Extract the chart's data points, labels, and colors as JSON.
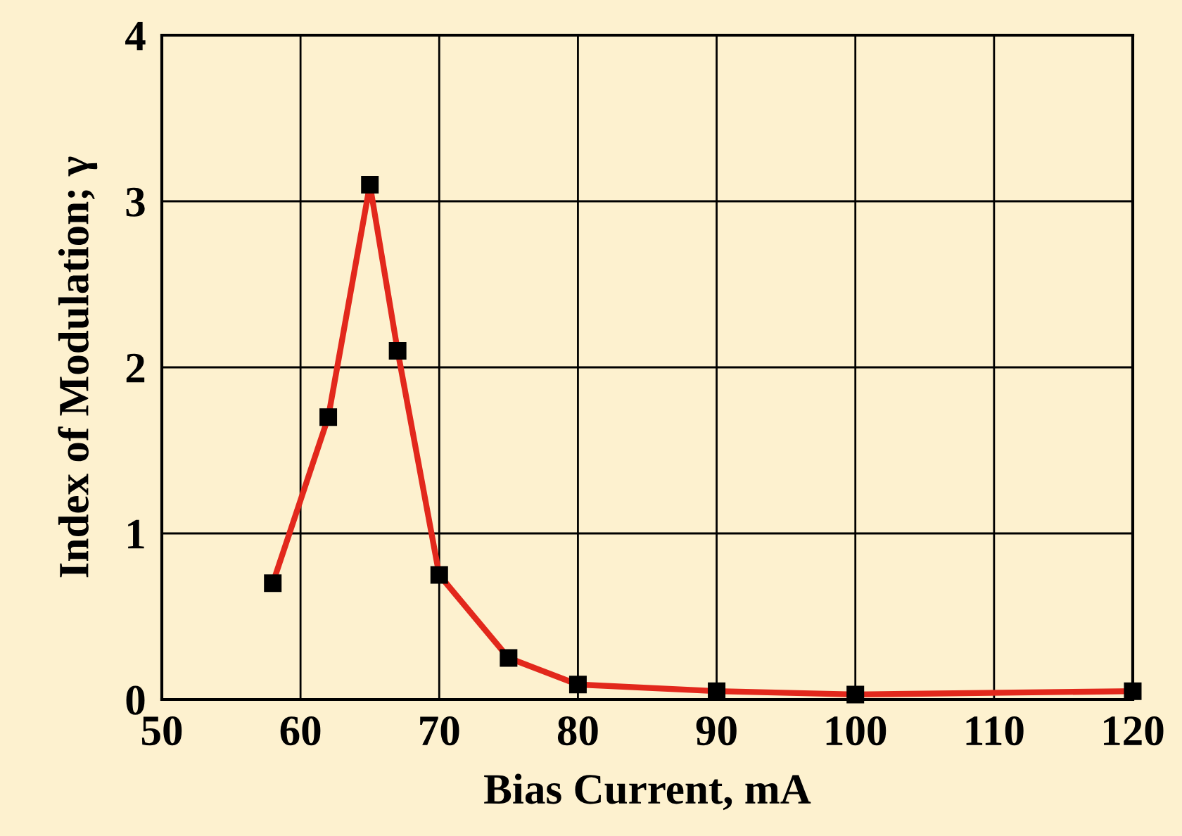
{
  "chart_data": {
    "type": "line",
    "xlabel": "Bias Current, mA",
    "ylabel": "Index of Modulation; γ",
    "x": [
      58,
      62,
      65,
      67,
      70,
      75,
      80,
      90,
      100,
      120
    ],
    "series": [
      {
        "color": "#e2281c",
        "values": [
          0.7,
          1.7,
          3.1,
          2.1,
          0.75,
          0.25,
          0.09,
          0.05,
          0.03,
          0.05
        ]
      }
    ],
    "xlim": [
      50,
      120
    ],
    "xticks": [
      50,
      60,
      70,
      80,
      90,
      100,
      110,
      120
    ],
    "ylim": [
      0,
      4
    ],
    "yticks": [
      0,
      1,
      2,
      3,
      4
    ],
    "grid": true,
    "marker": "square",
    "line_style": "solid",
    "legend": false
  }
}
